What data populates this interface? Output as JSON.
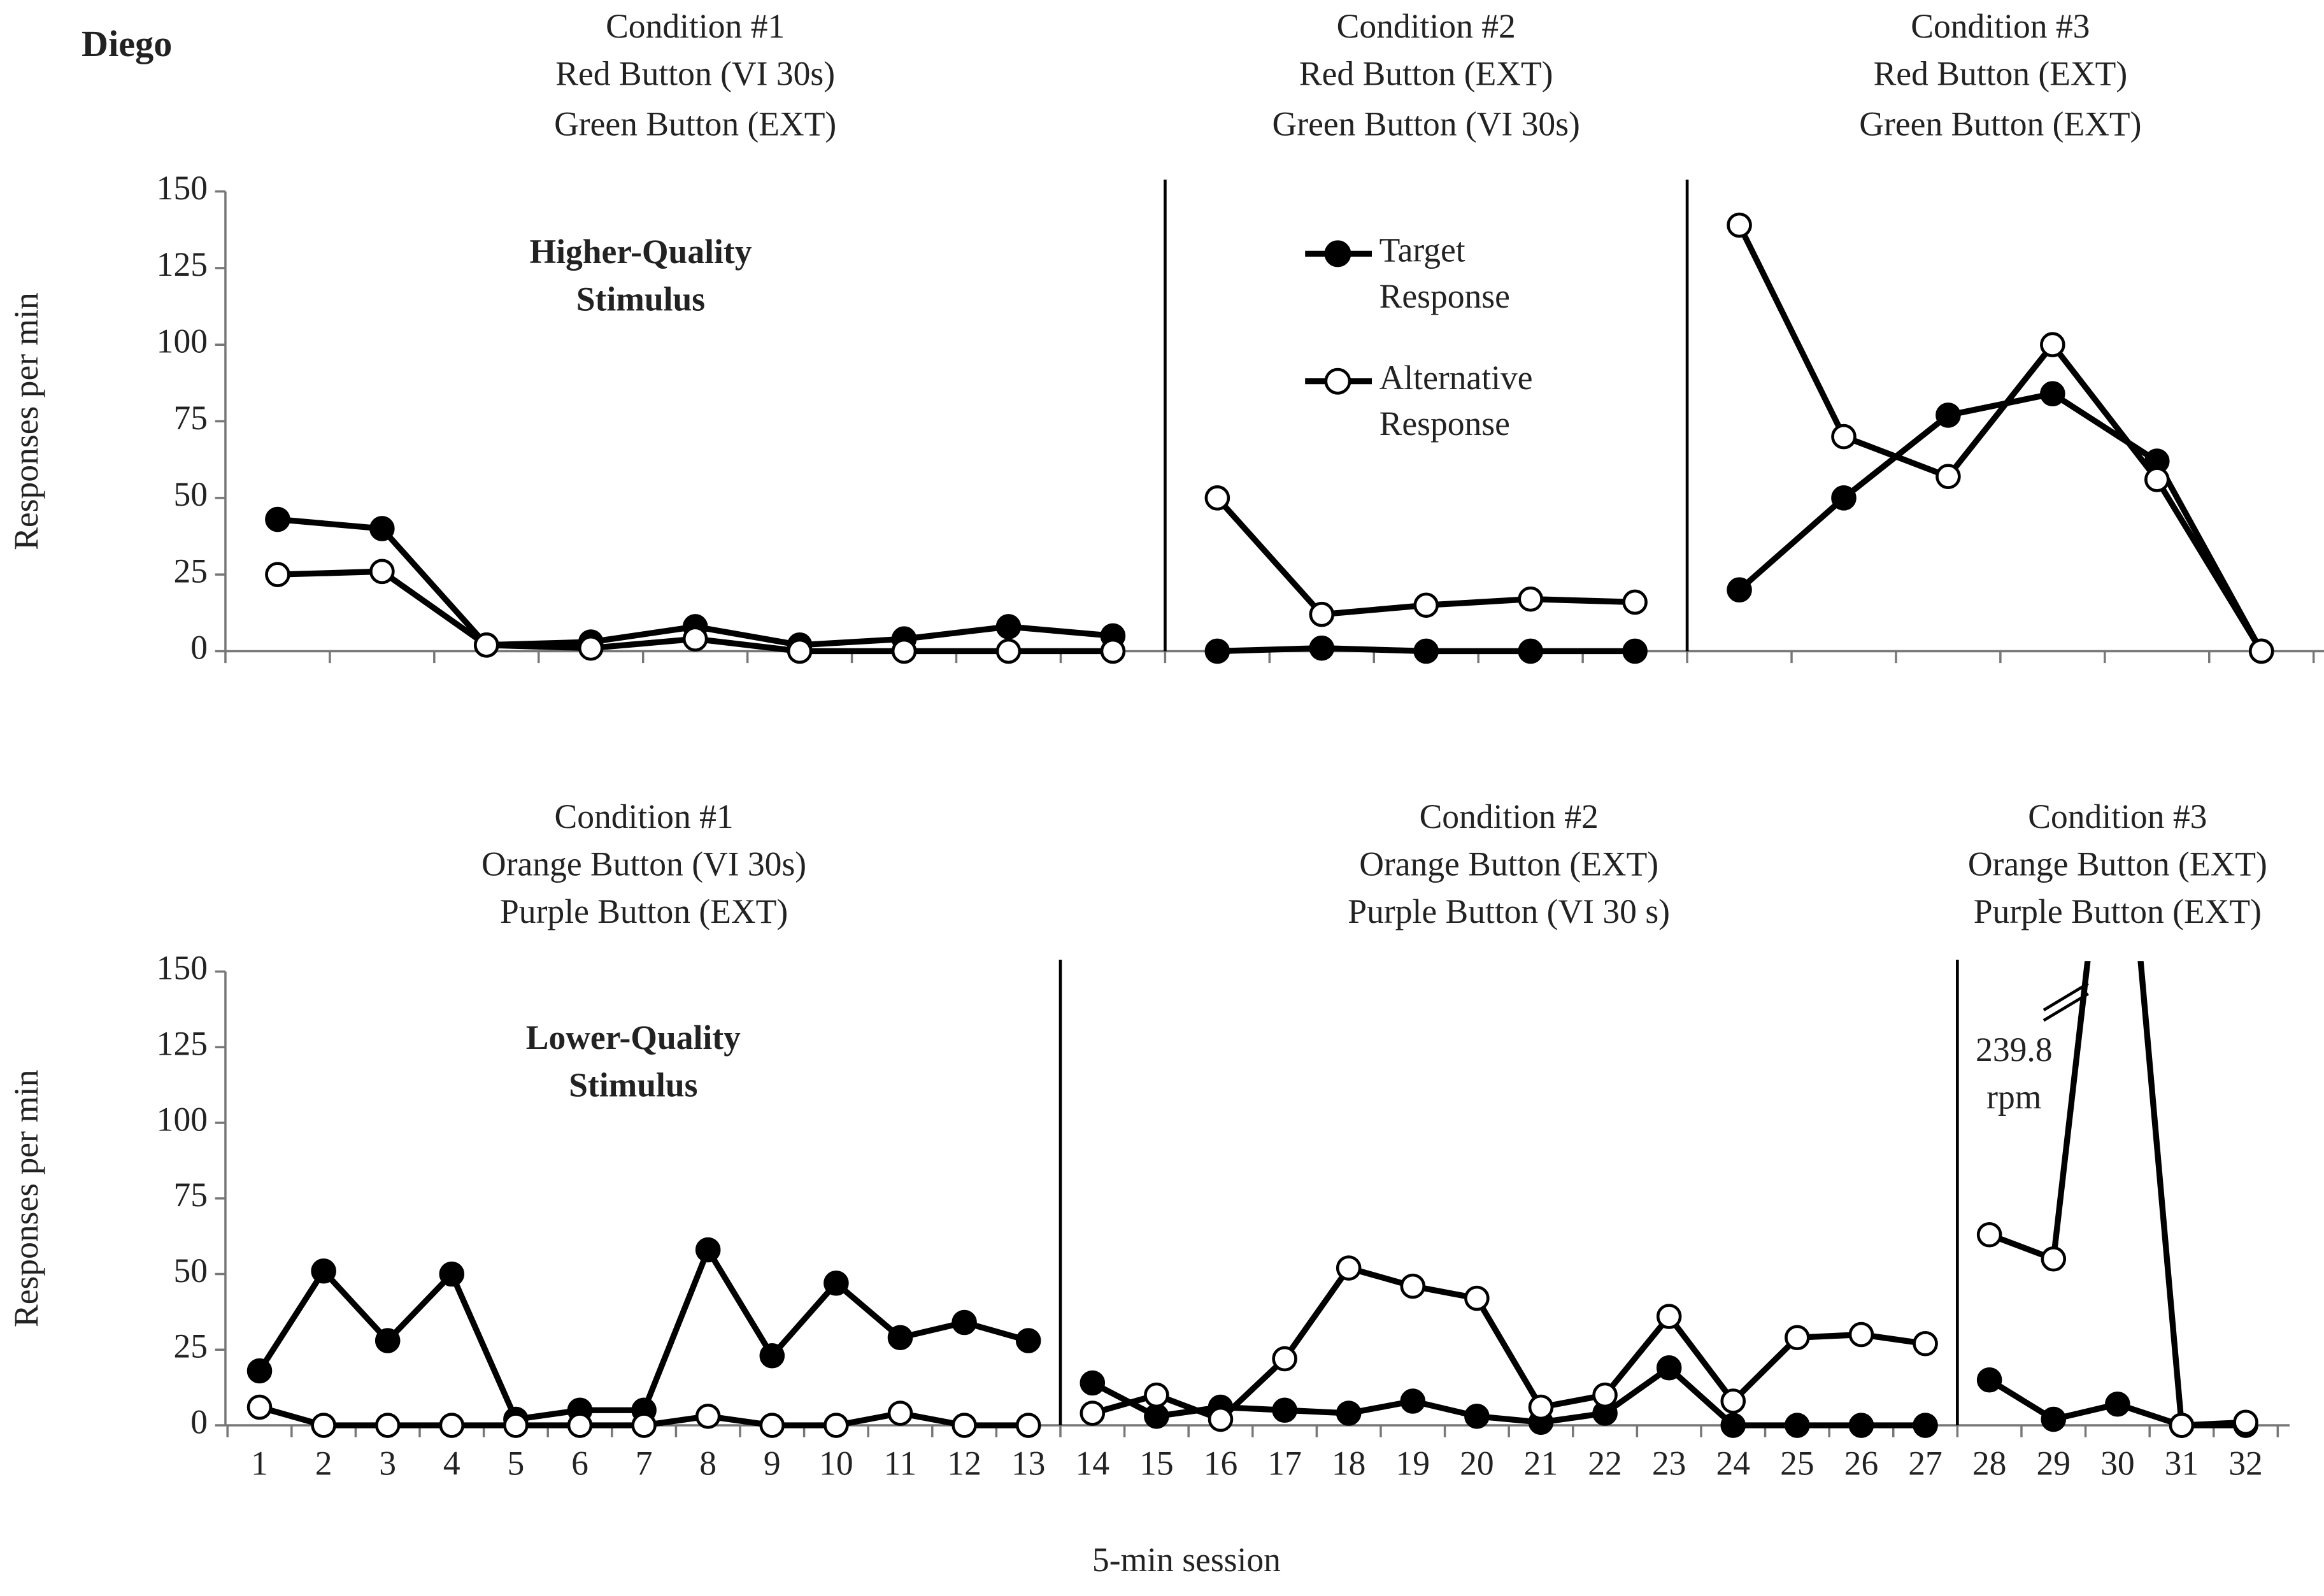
{
  "chart_data": [
    {
      "type": "line",
      "label": "Diego",
      "ylabel": "Responses per min",
      "panel_label": [
        "Higher-Quality",
        "Stimulus"
      ],
      "ylim": [
        0,
        150
      ],
      "yticks": [
        0,
        25,
        50,
        75,
        100,
        125,
        150
      ],
      "legend": true,
      "conditions": [
        {
          "title": [
            "Condition #1",
            "Red Button (VI 30s)",
            "Green Button (EXT)"
          ],
          "categories": [
            null,
            null,
            null,
            null,
            null,
            null,
            null,
            null,
            null
          ]
        },
        {
          "title": [
            "Condition #2",
            "Red Button (EXT)",
            "Green Button (VI 30s)"
          ],
          "categories": [
            null,
            null,
            null,
            null,
            null
          ]
        },
        {
          "title": [
            "Condition #3",
            "Red Button (EXT)",
            "Green Button (EXT)"
          ],
          "categories": [
            null,
            null,
            null,
            null,
            null,
            null
          ]
        }
      ],
      "series": [
        {
          "name": [
            "Target",
            "Response"
          ],
          "color": "#000000",
          "fill": "#000000",
          "values": [
            [
              43,
              40,
              2,
              3,
              8,
              2,
              4,
              8,
              5
            ],
            [
              0,
              1,
              0,
              0,
              0
            ],
            [
              20,
              50,
              77,
              84,
              62,
              0
            ]
          ]
        },
        {
          "name": [
            "Alternative",
            "Response"
          ],
          "color": "#000000",
          "fill": "#ffffff",
          "values": [
            [
              25,
              26,
              2,
              1,
              4,
              0,
              0,
              0,
              0
            ],
            [
              50,
              12,
              15,
              17,
              16
            ],
            [
              139,
              70,
              57,
              100,
              56,
              0
            ]
          ]
        }
      ]
    },
    {
      "type": "line",
      "ylabel": "Responses per min",
      "xlabel": "5-min session",
      "panel_label": [
        "Lower-Quality",
        "Stimulus"
      ],
      "ylim": [
        0,
        150
      ],
      "yticks": [
        0,
        25,
        50,
        75,
        100,
        125,
        150
      ],
      "legend": false,
      "annotation": [
        "239.8",
        "rpm"
      ],
      "conditions": [
        {
          "title": [
            "Condition #1",
            "Orange Button (VI 30s)",
            "Purple Button (EXT)"
          ],
          "categories": [
            "1",
            "2",
            "3",
            "4",
            "5",
            "6",
            "7",
            "8",
            "9",
            "10",
            "11",
            "12",
            "13"
          ]
        },
        {
          "title": [
            "Condition #2",
            "Orange Button (EXT)",
            "Purple Button (VI 30 s)"
          ],
          "categories": [
            "14",
            "15",
            "16",
            "17",
            "18",
            "19",
            "20",
            "21",
            "22",
            "23",
            "24",
            "25",
            "26",
            "27"
          ]
        },
        {
          "title": [
            "Condition #3",
            "Orange Button (EXT)",
            "Purple Button (EXT)"
          ],
          "categories": [
            "28",
            "29",
            "30",
            "31",
            "32"
          ]
        }
      ],
      "series": [
        {
          "color": "#000000",
          "fill": "#000000",
          "values": [
            [
              18,
              51,
              28,
              50,
              2,
              5,
              5,
              58,
              23,
              47,
              29,
              34,
              28
            ],
            [
              14,
              3,
              6,
              5,
              4,
              8,
              3,
              1,
              4,
              19,
              0,
              0,
              0,
              0
            ],
            [
              15,
              2,
              7,
              0,
              0
            ]
          ]
        },
        {
          "color": "#000000",
          "fill": "#ffffff",
          "values": [
            [
              6,
              0,
              0,
              0,
              0,
              0,
              0,
              3,
              0,
              0,
              4,
              0,
              0
            ],
            [
              4,
              10,
              2,
              22,
              52,
              46,
              42,
              6,
              10,
              36,
              8,
              29,
              30,
              27
            ],
            [
              63,
              55,
              239.8,
              0,
              1
            ]
          ]
        }
      ]
    }
  ]
}
